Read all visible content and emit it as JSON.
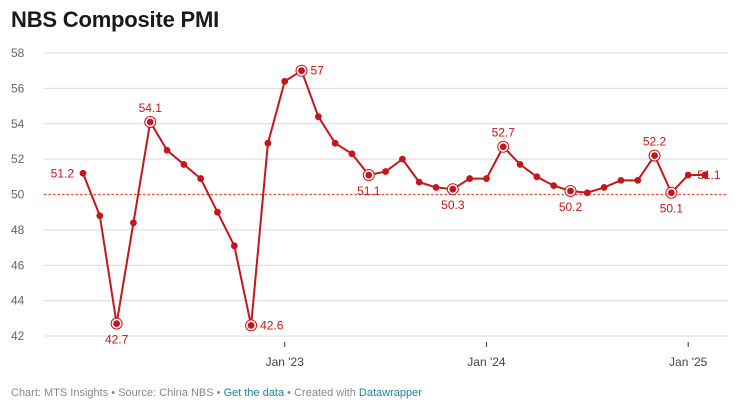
{
  "title": "NBS Composite PMI",
  "footer": {
    "chart_label": "Chart: MTS Insights",
    "source_label": "Source: China NBS",
    "data_link": "Get the data",
    "created_prefix": "Created with",
    "created_link": "Datawrapper",
    "separator": "•"
  },
  "colors": {
    "line": "#c4161c",
    "reference": "#e34b3a",
    "grid": "#d9d9d9",
    "label": "#c4161c"
  },
  "chart_data": {
    "type": "line",
    "title": "NBS Composite PMI",
    "xlabel": "",
    "ylabel": "",
    "ylim": [
      42,
      58
    ],
    "yticks": [
      42,
      44,
      46,
      48,
      50,
      52,
      54,
      56,
      58
    ],
    "grid": true,
    "reference_line": 50,
    "x": [
      "Jan '22",
      "Feb '22",
      "Mar '22",
      "Apr '22",
      "May '22",
      "Jun '22",
      "Jul '22",
      "Aug '22",
      "Sep '22",
      "Oct '22",
      "Nov '22",
      "Dec '22",
      "Jan '23",
      "Feb '23",
      "Mar '23",
      "Apr '23",
      "May '23",
      "Jun '23",
      "Jul '23",
      "Aug '23",
      "Sep '23",
      "Oct '23",
      "Nov '23",
      "Dec '23",
      "Jan '24",
      "Feb '24",
      "Mar '24",
      "Apr '24",
      "May '24",
      "Jun '24",
      "Jul '24",
      "Aug '24",
      "Sep '24",
      "Oct '24",
      "Nov '24",
      "Dec '24",
      "Jan '25",
      "Feb '25"
    ],
    "x_ticks": [
      {
        "index": 12,
        "label": "Jan '23"
      },
      {
        "index": 24,
        "label": "Jan '24"
      },
      {
        "index": 36,
        "label": "Jan '25"
      }
    ],
    "series": [
      {
        "values": [
          51.2,
          48.8,
          42.7,
          48.4,
          54.1,
          52.5,
          51.7,
          50.9,
          49.0,
          47.1,
          42.6,
          52.9,
          56.4,
          57.0,
          54.4,
          52.9,
          52.3,
          51.1,
          51.3,
          52.0,
          50.7,
          50.4,
          50.3,
          50.9,
          50.9,
          52.7,
          51.7,
          51.0,
          50.5,
          50.2,
          50.1,
          50.4,
          50.8,
          50.8,
          52.2,
          50.1,
          51.1,
          51.1
        ]
      }
    ],
    "annotations": [
      {
        "index": 0,
        "text": "51.2",
        "pos": "left",
        "ring": false
      },
      {
        "index": 2,
        "text": "42.7",
        "pos": "below",
        "ring": true
      },
      {
        "index": 4,
        "text": "54.1",
        "pos": "above",
        "ring": true
      },
      {
        "index": 10,
        "text": "42.6",
        "pos": "right",
        "ring": true
      },
      {
        "index": 13,
        "text": "57",
        "pos": "right",
        "ring": true
      },
      {
        "index": 17,
        "text": "51.1",
        "pos": "below",
        "ring": true
      },
      {
        "index": 22,
        "text": "50.3",
        "pos": "below",
        "ring": true
      },
      {
        "index": 25,
        "text": "52.7",
        "pos": "above",
        "ring": true
      },
      {
        "index": 29,
        "text": "50.2",
        "pos": "below",
        "ring": true
      },
      {
        "index": 34,
        "text": "52.2",
        "pos": "above",
        "ring": true
      },
      {
        "index": 35,
        "text": "50.1",
        "pos": "below",
        "ring": true
      },
      {
        "index": 36,
        "text": "51.1",
        "pos": "right",
        "ring": false
      }
    ]
  }
}
